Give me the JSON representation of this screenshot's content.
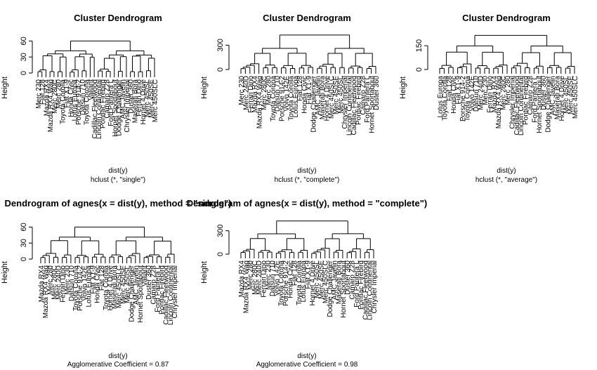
{
  "chart_data": [
    {
      "type": "dendrogram",
      "title": "Cluster Dendrogram",
      "xlabel": "dist(y)",
      "sublabel": "hclust (*, \"single\")",
      "ylabel": "Height",
      "yticks": [
        0,
        30,
        60
      ],
      "ylim": [
        0,
        75
      ],
      "merge_heights_top": [
        60,
        43,
        37,
        33
      ],
      "leaves": [
        "Merc 230",
        "Fiat 128",
        "Mazda RX4",
        "Mazda RX4 Wag",
        "Merc 280C",
        "Merc 280",
        "Toyota Corolla",
        "Fiat X1-9",
        "Honda Civic",
        "Lotus Europa",
        "Porsche 914-2",
        "Datsun 710",
        "Toyota Corona",
        "Valiant",
        "Cadillac Fleetwood",
        "Lincoln Continental",
        "Pontiac Firebird",
        "Camaro Z28",
        "Ford Pantera L",
        "Hornet Sportabout",
        "Dodge Challenger",
        "AMC Javelin",
        "Chrysler Imperial",
        "Duster 360",
        "Maserati Bora",
        "Ferrari Dino",
        "Hornet 4 Drive",
        "Merc 450SL",
        "Merc 450SE",
        "Merc 450SLC"
      ]
    },
    {
      "type": "dendrogram",
      "title": "Cluster Dendrogram",
      "xlabel": "dist(y)",
      "sublabel": "hclust (*, \"complete\")",
      "ylabel": "Height",
      "yticks": [
        0,
        300
      ],
      "ylim": [
        0,
        450
      ],
      "merge_heights_top": [
        425,
        262,
        200
      ],
      "leaves": [
        "Merc 230",
        "Merc 240D",
        "Ferrari Dino",
        "Mazda RX4",
        "Mazda RX4 Wag",
        "Merc 280C",
        "Merc 280",
        "Toyota Corona",
        "Datsun 710",
        "Porsche 914-2",
        "Volvo 142E",
        "Toyota Corolla",
        "Lotus Europa",
        "Fiat 128",
        "Honda Civic",
        "Fiat X1-9",
        "Dodge Challenger",
        "AMC Javelin",
        "Maserati Bora",
        "Hornet 4 Drive",
        "Merc 450SLC",
        "Merc 450SE",
        "Merc 450SL",
        "Chrysler Imperial",
        "Lincoln Continental",
        "Cadillac Fleetwood",
        "Pontiac Firebird",
        "Camaro Z28",
        "Ford Pantera L",
        "Hornet Sportabout",
        "Duster 360"
      ]
    },
    {
      "type": "dendrogram",
      "title": "Cluster Dendrogram",
      "xlabel": "dist(y)",
      "sublabel": "hclust (*, \"average\")",
      "ylabel": "Height",
      "yticks": [
        0,
        150
      ],
      "ylim": [
        0,
        230
      ],
      "merge_heights_top": [
        215,
        150,
        110
      ],
      "leaves": [
        "Lotus Europa",
        "Toyota Corolla",
        "Fiat 128",
        "Honda Civic",
        "Fiat X1-9",
        "Porsche 914-2",
        "Toyota Corona",
        "Volvo 142E",
        "Datsun 710",
        "Merc 240D",
        "Merc 230",
        "Ferrari Dino",
        "Mazda RX4",
        "Mazda RX4 Wag",
        "Merc 280C",
        "Merc 280",
        "Chrysler Imperial",
        "Cadillac Fleetwood",
        "Lincoln Continental",
        "Pontiac Firebird",
        "Camaro Z28",
        "Ford Pantera L",
        "Hornet Sportabout",
        "Duster 360",
        "Dodge Challenger",
        "AMC Javelin",
        "Maserati Bora",
        "Hornet 4 Drive",
        "Merc 450SL",
        "Merc 450SE",
        "Merc 450SLC"
      ]
    },
    {
      "type": "dendrogram",
      "title": "Dendrogram of  agnes(x = dist(y), method = \"single\")",
      "xlabel": "dist(y)",
      "sublabel": "Agglomerative Coefficient =  0.87",
      "ylabel": "Height",
      "yticks": [
        0,
        30,
        60
      ],
      "ylim": [
        0,
        75
      ],
      "merge_heights_top": [
        60,
        43,
        37
      ],
      "leaves": [
        "Mazda RX4",
        "Mazda RX4 Wag",
        "Merc 280",
        "Merc 280C",
        "Merc 240D",
        "Ferrari Dino",
        "Merc 230",
        "Datsun 710",
        "Toyota Corona",
        "Porsche 914-2",
        "Volvo 142E",
        "Lotus Europa",
        "Fiat X1-9",
        "Honda Civic",
        "Fiat 128",
        "Toyota Corolla",
        "Hornet 4 Drive",
        "Maserati Bora",
        "Merc 450SLC",
        "Merc 450SE",
        "Merc 450SL",
        "Dodge Challenger",
        "AMC Javelin",
        "Hornet Sportabout",
        "Valiant",
        "Duster 360",
        "Camaro Z28",
        "Ford Pantera L",
        "Pontiac Firebird",
        "Cadillac Fleetwood",
        "Lincoln Continental",
        "Chrysler Imperial"
      ]
    },
    {
      "type": "dendrogram",
      "title": "Dendrogram of  agnes(x = dist(y), method = \"complete\")",
      "xlabel": "dist(y)",
      "sublabel": "Agglomerative Coefficient =  0.98",
      "ylabel": "Height",
      "yticks": [
        0,
        300
      ],
      "ylim": [
        0,
        450
      ],
      "merge_heights_top": [
        425,
        262,
        200
      ],
      "leaves": [
        "Mazda RX4",
        "Mazda RX4 Wag",
        "Merc 280",
        "Merc 280C",
        "Merc 240D",
        "Ferrari Dino",
        "Merc 230",
        "Datsun 710",
        "Volvo 142E",
        "Toyota Corona",
        "Porsche 914-2",
        "Honda Civic",
        "Fiat 128",
        "Toyota Corolla",
        "Lotus Europa",
        "Fiat X1-9",
        "Hornet 4 Drive",
        "Merc 450SL",
        "Merc 450SE",
        "Merc 450SLC",
        "Dodge Challenger",
        "AMC Javelin",
        "Maserati Bora",
        "Hornet Sportabout",
        "Duster 360",
        "Camaro Z28",
        "Ford Pantera L",
        "Pontiac Firebird",
        "Cadillac Fleetwood",
        "Lincoln Continental",
        "Chrysler Imperial"
      ]
    }
  ]
}
